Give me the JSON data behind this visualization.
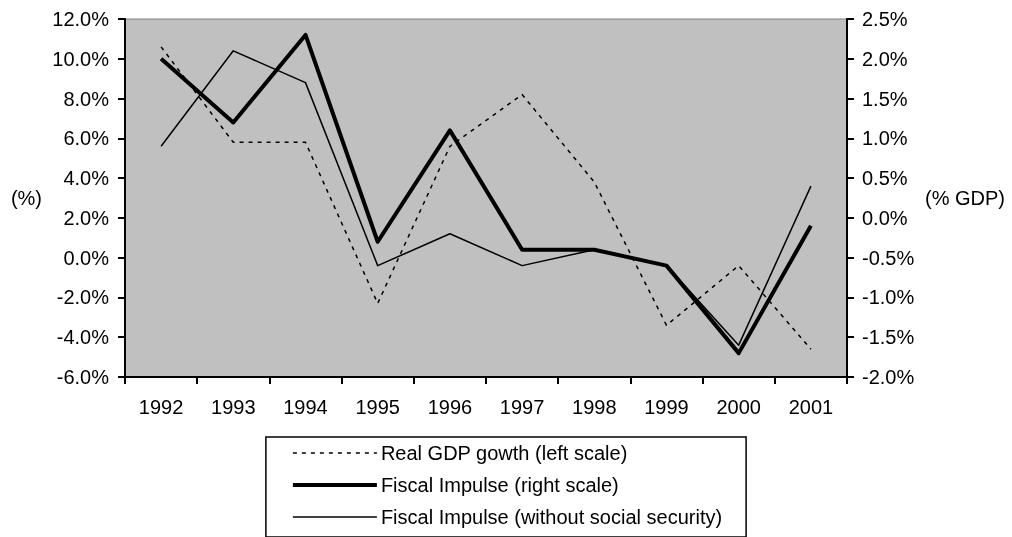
{
  "chart_data": {
    "type": "line",
    "ylabel": "(%)",
    "y2label": "(% GDP)",
    "categories": [
      "1992",
      "1993",
      "1994",
      "1995",
      "1996",
      "1997",
      "1998",
      "1999",
      "2000",
      "2001"
    ],
    "series": [
      {
        "name": "Real GDP gowth (left scale)",
        "color": "#000000",
        "line_style": "dashed",
        "values": [
          10.6,
          5.8,
          5.8,
          -2.3,
          5.6,
          8.2,
          3.8,
          -3.4,
          -0.4,
          -4.6
        ]
      },
      {
        "name": "Fiscal Impulse (right scale)",
        "color": "#000000",
        "line_style": "solid",
        "axis": "y2",
        "values": [
          2.0,
          1.2,
          2.3,
          -0.3,
          1.1,
          -0.4,
          -0.4,
          -0.6,
          -1.7,
          -0.1
        ]
      },
      {
        "name": "Fiscal Impulse (without social security)",
        "color": "#000000",
        "line_style": "solid",
        "axis": "y2",
        "values": [
          0.9,
          2.1,
          1.7,
          -0.6,
          -0.2,
          -0.6,
          -0.4,
          -0.6,
          -1.6,
          0.4
        ]
      }
    ],
    "ylim": [
      -6,
      12
    ],
    "yticks": [
      {
        "value": -6,
        "label": "-6.0%"
      },
      {
        "value": -4,
        "label": "-4.0%"
      },
      {
        "value": -2,
        "label": "-2.0%"
      },
      {
        "value": 0,
        "label": "0.0%"
      },
      {
        "value": 2,
        "label": "2.0%"
      },
      {
        "value": 4,
        "label": "4.0%"
      },
      {
        "value": 6,
        "label": "6.0%"
      },
      {
        "value": 8,
        "label": "8.0%"
      },
      {
        "value": 10,
        "label": "10.0%"
      },
      {
        "value": 12,
        "label": "12.0%"
      }
    ],
    "y2lim": [
      -2,
      2.5
    ],
    "y2ticks": [
      {
        "value": -2,
        "label": "-2.0%"
      },
      {
        "value": -1.5,
        "label": "-1.5%"
      },
      {
        "value": -1,
        "label": "-1.0%"
      },
      {
        "value": -0.5,
        "label": "-0.5%"
      },
      {
        "value": 0,
        "label": "0.0%"
      },
      {
        "value": 0.5,
        "label": "0.5%"
      },
      {
        "value": 1,
        "label": "1.0%"
      },
      {
        "value": 1.5,
        "label": "1.5%"
      },
      {
        "value": 2,
        "label": "2.0%"
      },
      {
        "value": 2.5,
        "label": "2.5%"
      }
    ],
    "grid": false,
    "legend": "bottom",
    "marker": "none"
  }
}
